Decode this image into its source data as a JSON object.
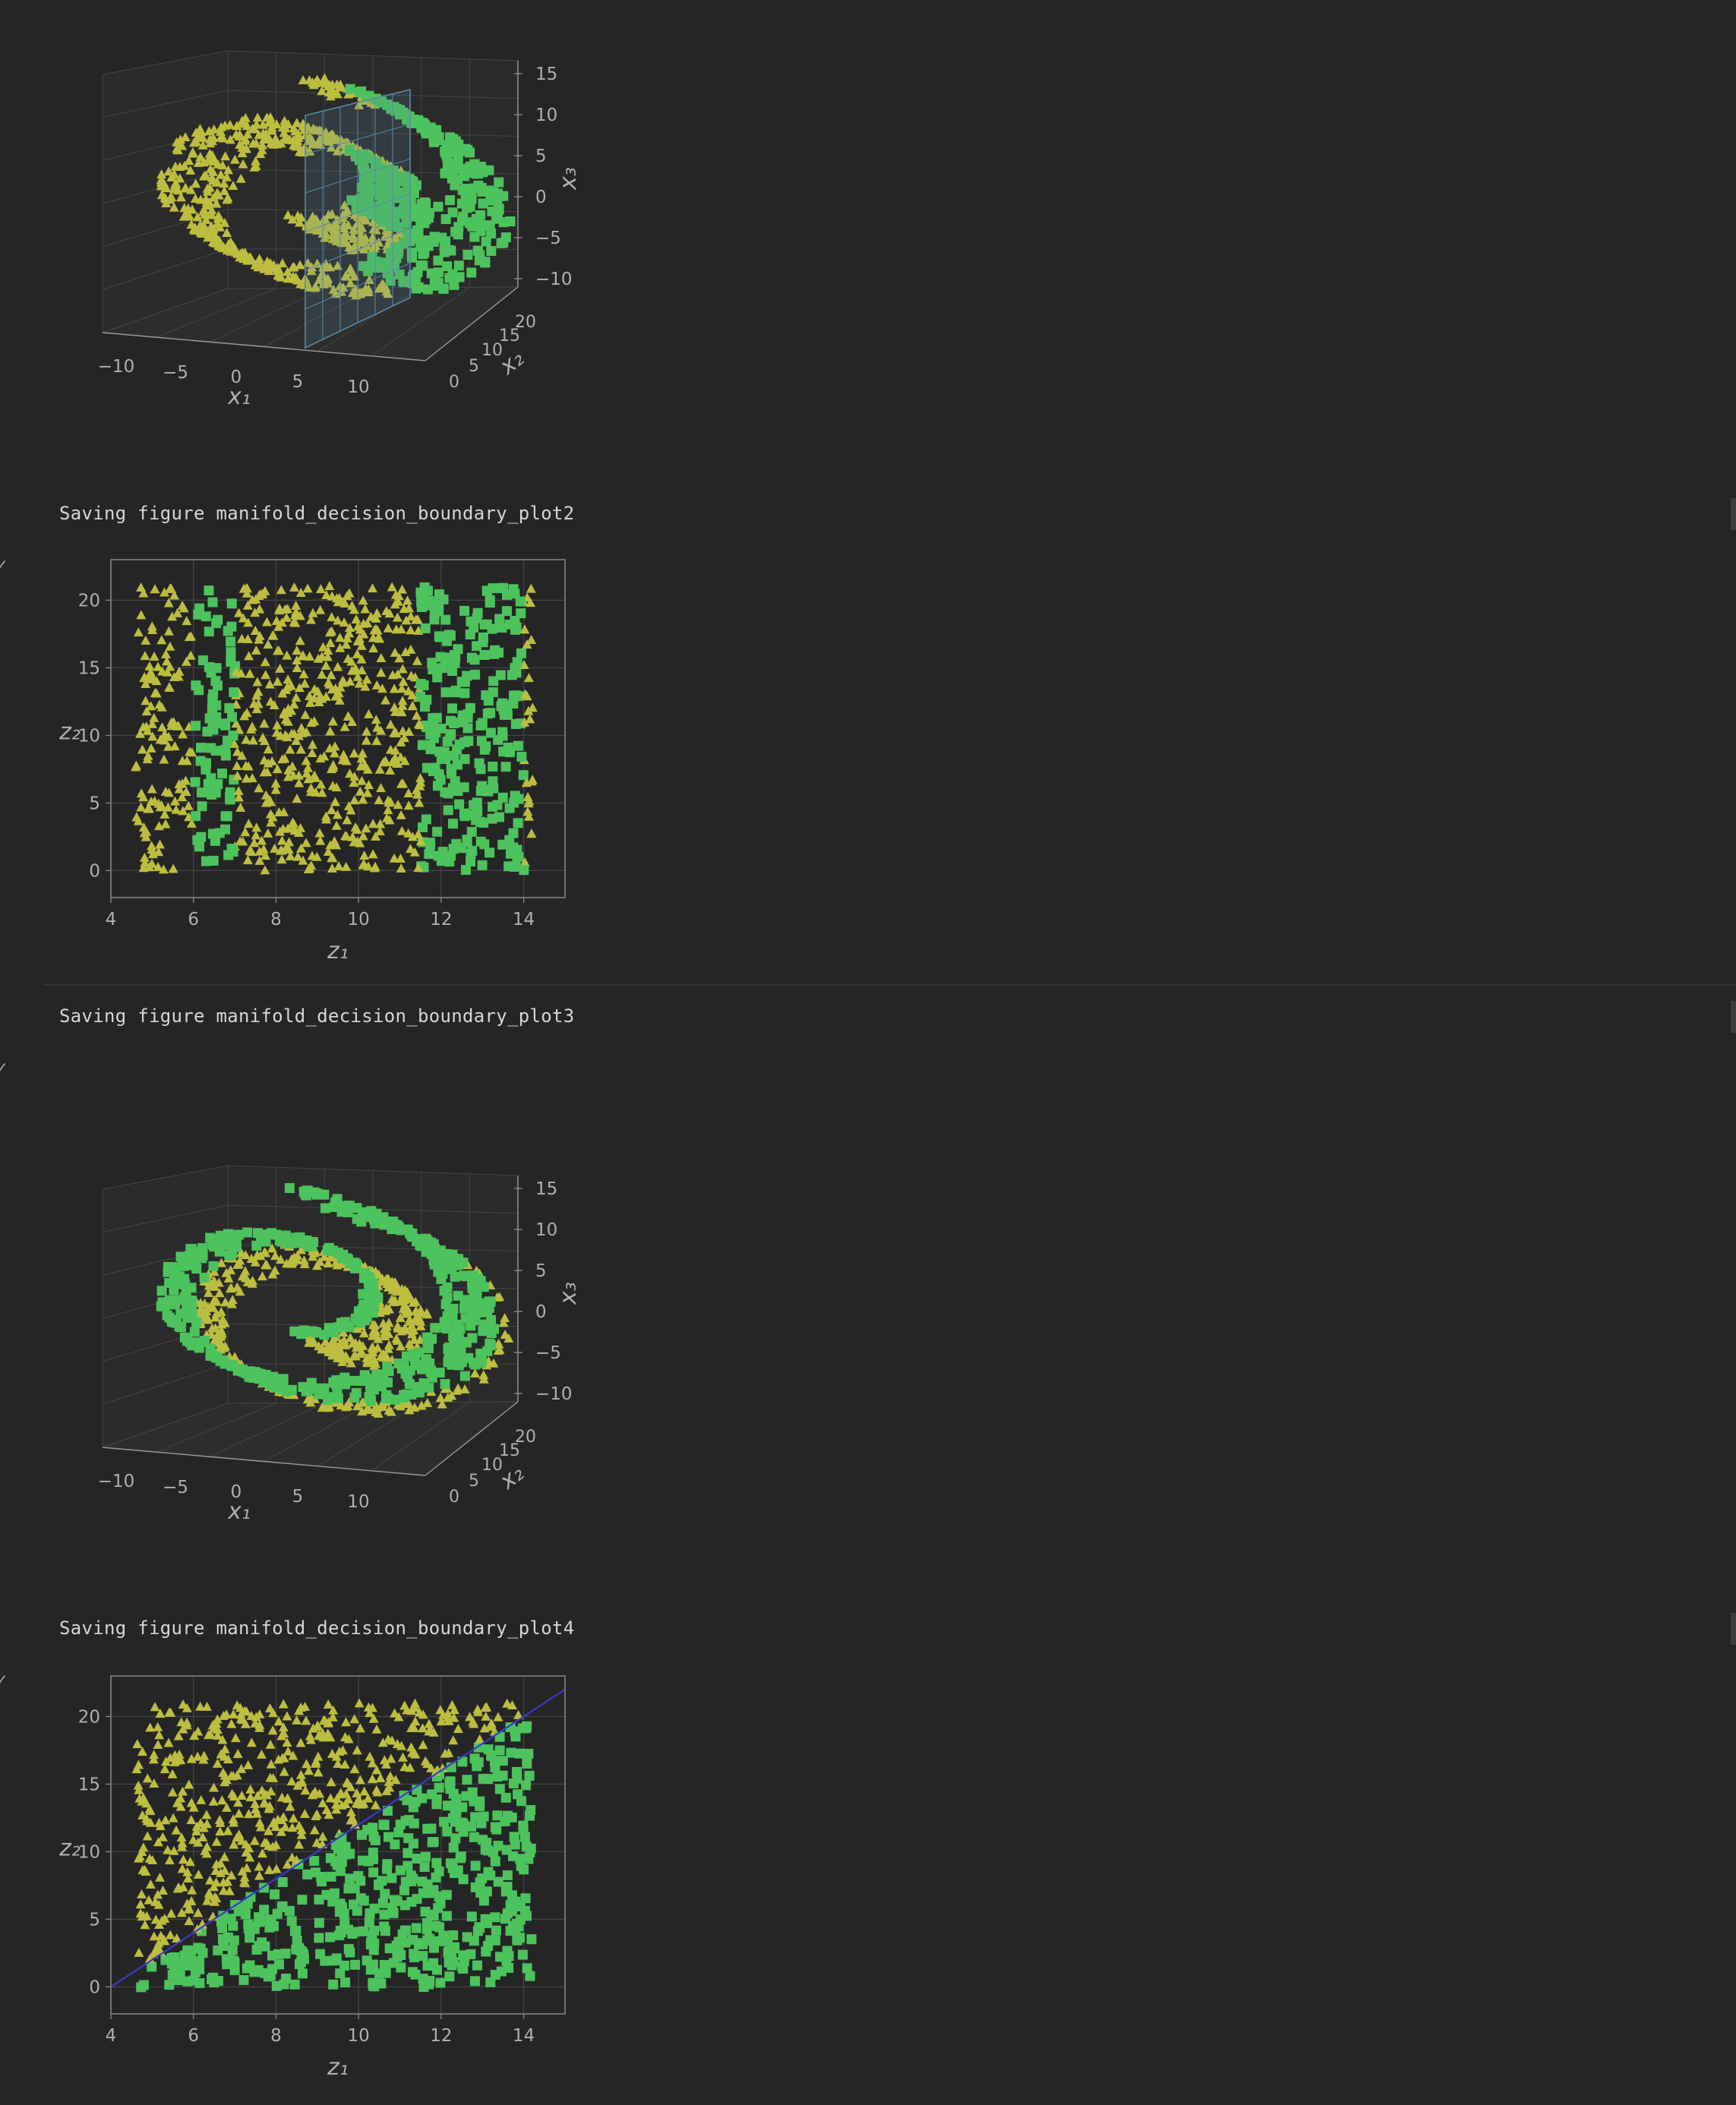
{
  "outputs": {
    "msg2": "Saving figure manifold_decision_boundary_plot2",
    "msg3": "Saving figure manifold_decision_boundary_plot3",
    "msg4": "Saving figure manifold_decision_boundary_plot4",
    "check_glyph": "✓"
  },
  "colors": {
    "background": "#252526",
    "yellow_class": "#bdbd40",
    "green_class": "#4cc35c",
    "boundary_line": "#3a3ad0",
    "plane": "#5a8aa8",
    "axis_text": "#b0b0b0",
    "grid": "#454545"
  },
  "chart_data": [
    {
      "type": "scatter",
      "projection": "3d",
      "title": "",
      "xlabel": "x₁",
      "ylabel": "x₂",
      "zlabel": "x₃",
      "xticks": [
        "−10",
        "−5",
        "0",
        "5",
        "10"
      ],
      "yticks": [
        "0",
        "5",
        "10",
        "15",
        "20"
      ],
      "zticks": [
        "15",
        "10",
        "5",
        "0",
        "−5",
        "−10"
      ],
      "xlim": [
        -11,
        14
      ],
      "ylim": [
        0,
        21
      ],
      "zlim": [
        -12,
        15
      ],
      "decision_plane": {
        "x": 5
      },
      "series": [
        {
          "marker": "triangle",
          "color": "#bdbd40",
          "rule": "x1 < 5"
        },
        {
          "marker": "square",
          "color": "#4cc35c",
          "rule": "x1 >= 5"
        }
      ]
    },
    {
      "type": "scatter",
      "title": "",
      "xlabel": "z₁",
      "ylabel": "z₂",
      "xticks": [
        "4",
        "6",
        "8",
        "10",
        "12",
        "14"
      ],
      "yticks": [
        "0",
        "5",
        "10",
        "15",
        "20"
      ],
      "xlim": [
        4,
        15
      ],
      "ylim": [
        -2,
        23
      ],
      "series": [
        {
          "marker": "triangle",
          "color": "#bdbd40",
          "rule": "other"
        },
        {
          "marker": "square",
          "color": "#4cc35c",
          "bands": [
            [
              6,
              7
            ],
            [
              11.5,
              14
            ]
          ]
        }
      ]
    },
    {
      "type": "scatter",
      "projection": "3d",
      "title": "",
      "xlabel": "x₁",
      "ylabel": "x₂",
      "zlabel": "x₃",
      "xticks": [
        "−10",
        "−5",
        "0",
        "5",
        "10"
      ],
      "yticks": [
        "0",
        "5",
        "10",
        "15",
        "20"
      ],
      "zticks": [
        "15",
        "10",
        "5",
        "0",
        "−5",
        "−10"
      ],
      "xlim": [
        -11,
        14
      ],
      "ylim": [
        0,
        21
      ],
      "zlim": [
        -12,
        15
      ],
      "series": [
        {
          "marker": "triangle",
          "color": "#bdbd40",
          "rule": "z2 > 2*(z1-4)"
        },
        {
          "marker": "square",
          "color": "#4cc35c",
          "rule": "z2 <= 2*(z1-4)"
        }
      ]
    },
    {
      "type": "scatter",
      "title": "",
      "xlabel": "z₁",
      "ylabel": "z₂",
      "xticks": [
        "4",
        "6",
        "8",
        "10",
        "12",
        "14"
      ],
      "yticks": [
        "0",
        "5",
        "10",
        "15",
        "20"
      ],
      "xlim": [
        4,
        15
      ],
      "ylim": [
        -2,
        23
      ],
      "decision_line": {
        "x": [
          4,
          15
        ],
        "y": [
          0,
          22
        ]
      },
      "series": [
        {
          "marker": "triangle",
          "color": "#bdbd40",
          "rule": "z2 > 2*(z1-4)"
        },
        {
          "marker": "square",
          "color": "#4cc35c",
          "rule": "z2 <= 2*(z1-4)"
        }
      ]
    }
  ]
}
